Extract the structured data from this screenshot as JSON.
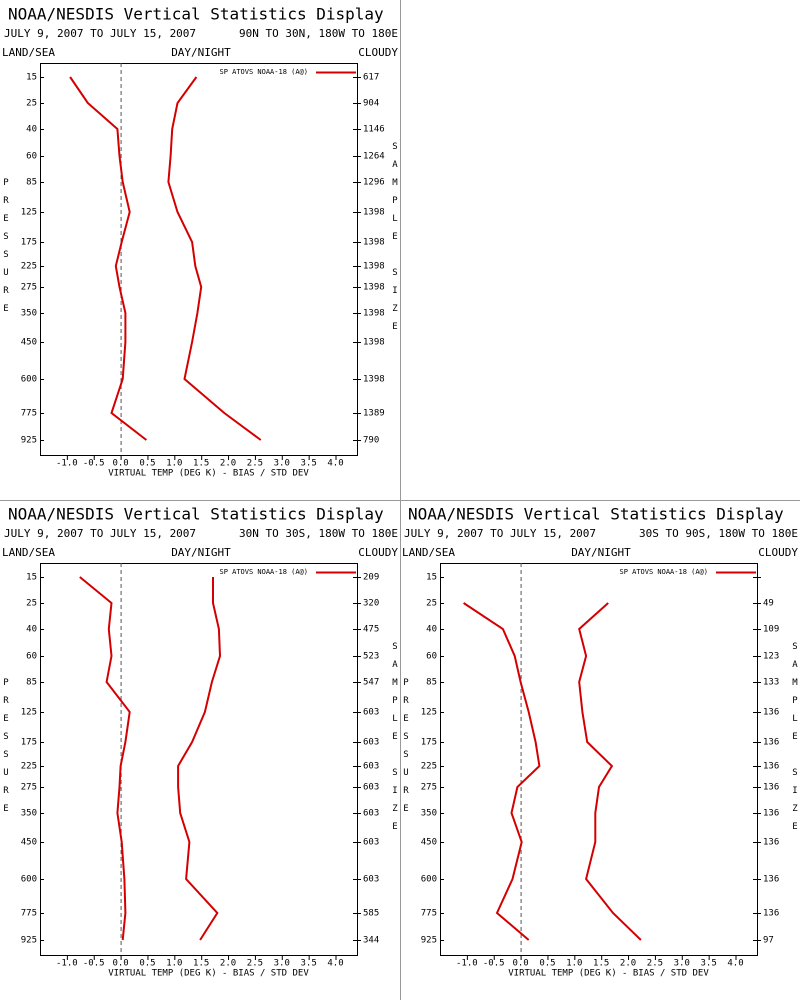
{
  "chart_data": [
    {
      "type": "line",
      "title": "NOAA/NESDIS Vertical Statistics Display",
      "subtitle": "JULY 9, 2007 TO JULY 15, 2007",
      "region": "90N TO 30N, 180W TO 180E",
      "left_header": "LAND/SEA",
      "center_header": "DAY/NIGHT",
      "right_header": "CLOUDY",
      "y_label": "PRESSURE",
      "y2_label": "SAMPLE SIZE",
      "x_label": "VIRTUAL TEMP (DEG K) - BIAS / STD DEV",
      "categories": [
        15,
        25,
        40,
        60,
        85,
        125,
        175,
        225,
        275,
        350,
        450,
        600,
        775,
        925
      ],
      "sample_size": [
        617,
        904,
        1146,
        1264,
        1296,
        1398,
        1398,
        1398,
        1398,
        1398,
        1398,
        1398,
        1389,
        790
      ],
      "series": [
        {
          "name": "SP ATOVS NOAA-18 (A@)",
          "color": "#d40000",
          "bias": [
            -0.94,
            -0.61,
            -0.06,
            -0.02,
            0.04,
            0.17,
            0.02,
            -0.09,
            -0.02,
            0.09,
            0.09,
            0.04,
            -0.17,
            0.48
          ],
          "std_dev": [
            1.41,
            1.06,
            0.96,
            0.93,
            0.89,
            1.06,
            1.33,
            1.39,
            1.5,
            1.43,
            1.33,
            1.19,
            1.93,
            2.61
          ]
        }
      ],
      "xlim": [
        -1.5,
        4.4
      ],
      "xticks": [
        {
          "value": -1,
          "label": "-1.0"
        },
        {
          "value": -0.5,
          "label": "-0.5"
        },
        {
          "value": 0,
          "label": "0.0"
        },
        {
          "value": 0.5,
          "label": "0.5"
        },
        {
          "value": 1,
          "label": "1.0"
        },
        {
          "value": 1.5,
          "label": "1.5"
        },
        {
          "value": 2,
          "label": "2.0"
        },
        {
          "value": 2.5,
          "label": "2.5"
        },
        {
          "value": 3,
          "label": "3.0"
        },
        {
          "value": 3.5,
          "label": "3.5"
        },
        {
          "value": 4,
          "label": "4.0"
        }
      ]
    },
    {
      "type": "line",
      "title": "NOAA/NESDIS Vertical Statistics Display",
      "subtitle": "JULY 9, 2007 TO JULY 15, 2007",
      "region": "30N TO 30S, 180W TO 180E",
      "left_header": "LAND/SEA",
      "center_header": "DAY/NIGHT",
      "right_header": "CLOUDY",
      "y_label": "PRESSURE",
      "y2_label": "SAMPLE SIZE",
      "x_label": "VIRTUAL TEMP (DEG K) - BIAS / STD DEV",
      "categories": [
        15,
        25,
        40,
        60,
        85,
        125,
        175,
        225,
        275,
        350,
        450,
        600,
        775,
        925
      ],
      "sample_size": [
        209,
        320,
        475,
        523,
        547,
        603,
        603,
        603,
        603,
        603,
        603,
        603,
        585,
        344
      ],
      "series": [
        {
          "name": "SP ATOVS NOAA-18 (A@)",
          "color": "#d40000",
          "bias": [
            -0.76,
            -0.17,
            -0.22,
            -0.17,
            -0.26,
            0.17,
            0.09,
            0,
            -0.02,
            -0.06,
            0.02,
            0.07,
            0.09,
            0.04
          ],
          "std_dev": [
            1.72,
            1.72,
            1.83,
            1.85,
            1.7,
            1.57,
            1.33,
            1.07,
            1.07,
            1.11,
            1.28,
            1.22,
            1.8,
            1.48
          ]
        }
      ],
      "xlim": [
        -1.5,
        4.4
      ],
      "xticks": [
        {
          "value": -1,
          "label": "-1.0"
        },
        {
          "value": -0.5,
          "label": "-0.5"
        },
        {
          "value": 0,
          "label": "0.0"
        },
        {
          "value": 0.5,
          "label": "0.5"
        },
        {
          "value": 1,
          "label": "1.0"
        },
        {
          "value": 1.5,
          "label": "1.5"
        },
        {
          "value": 2,
          "label": "2.0"
        },
        {
          "value": 2.5,
          "label": "2.5"
        },
        {
          "value": 3,
          "label": "3.0"
        },
        {
          "value": 3.5,
          "label": "3.5"
        },
        {
          "value": 4,
          "label": "4.0"
        }
      ]
    },
    {
      "type": "line",
      "title": "NOAA/NESDIS Vertical Statistics Display",
      "subtitle": "JULY 9, 2007 TO JULY 15, 2007",
      "region": "30S TO 90S, 180W TO 180E",
      "left_header": "LAND/SEA",
      "center_header": "DAY/NIGHT",
      "right_header": "CLOUDY",
      "y_label": "PRESSURE",
      "y2_label": "SAMPLE SIZE",
      "x_label": "VIRTUAL TEMP (DEG K) - BIAS / STD DEV",
      "categories": [
        15,
        25,
        40,
        60,
        85,
        125,
        175,
        225,
        275,
        350,
        450,
        600,
        775,
        925
      ],
      "sample_size": [
        null,
        49,
        109,
        123,
        133,
        136,
        136,
        136,
        136,
        136,
        136,
        136,
        136,
        97
      ],
      "series": [
        {
          "name": "SP ATOVS NOAA-18 (A@)",
          "color": "#d40000",
          "bias": [
            null,
            -1.06,
            -0.33,
            -0.11,
            0,
            0.15,
            0.28,
            0.35,
            -0.06,
            -0.17,
            0.02,
            -0.15,
            -0.44,
            0.15
          ],
          "std_dev": [
            null,
            1.63,
            1.09,
            1.22,
            1.09,
            1.15,
            1.24,
            1.7,
            1.46,
            1.39,
            1.39,
            1.22,
            1.72,
            2.24
          ]
        }
      ],
      "xlim": [
        -1.5,
        4.4
      ],
      "xticks": [
        {
          "value": -1,
          "label": "-1.0"
        },
        {
          "value": -0.5,
          "label": "-0.5"
        },
        {
          "value": 0,
          "label": "0.0"
        },
        {
          "value": 0.5,
          "label": "0.5"
        },
        {
          "value": 1,
          "label": "1.0"
        },
        {
          "value": 1.5,
          "label": "1.5"
        },
        {
          "value": 2,
          "label": "2.0"
        },
        {
          "value": 2.5,
          "label": "2.5"
        },
        {
          "value": 3,
          "label": "3.0"
        },
        {
          "value": 3.5,
          "label": "3.5"
        },
        {
          "value": 4,
          "label": "4.0"
        }
      ]
    }
  ]
}
